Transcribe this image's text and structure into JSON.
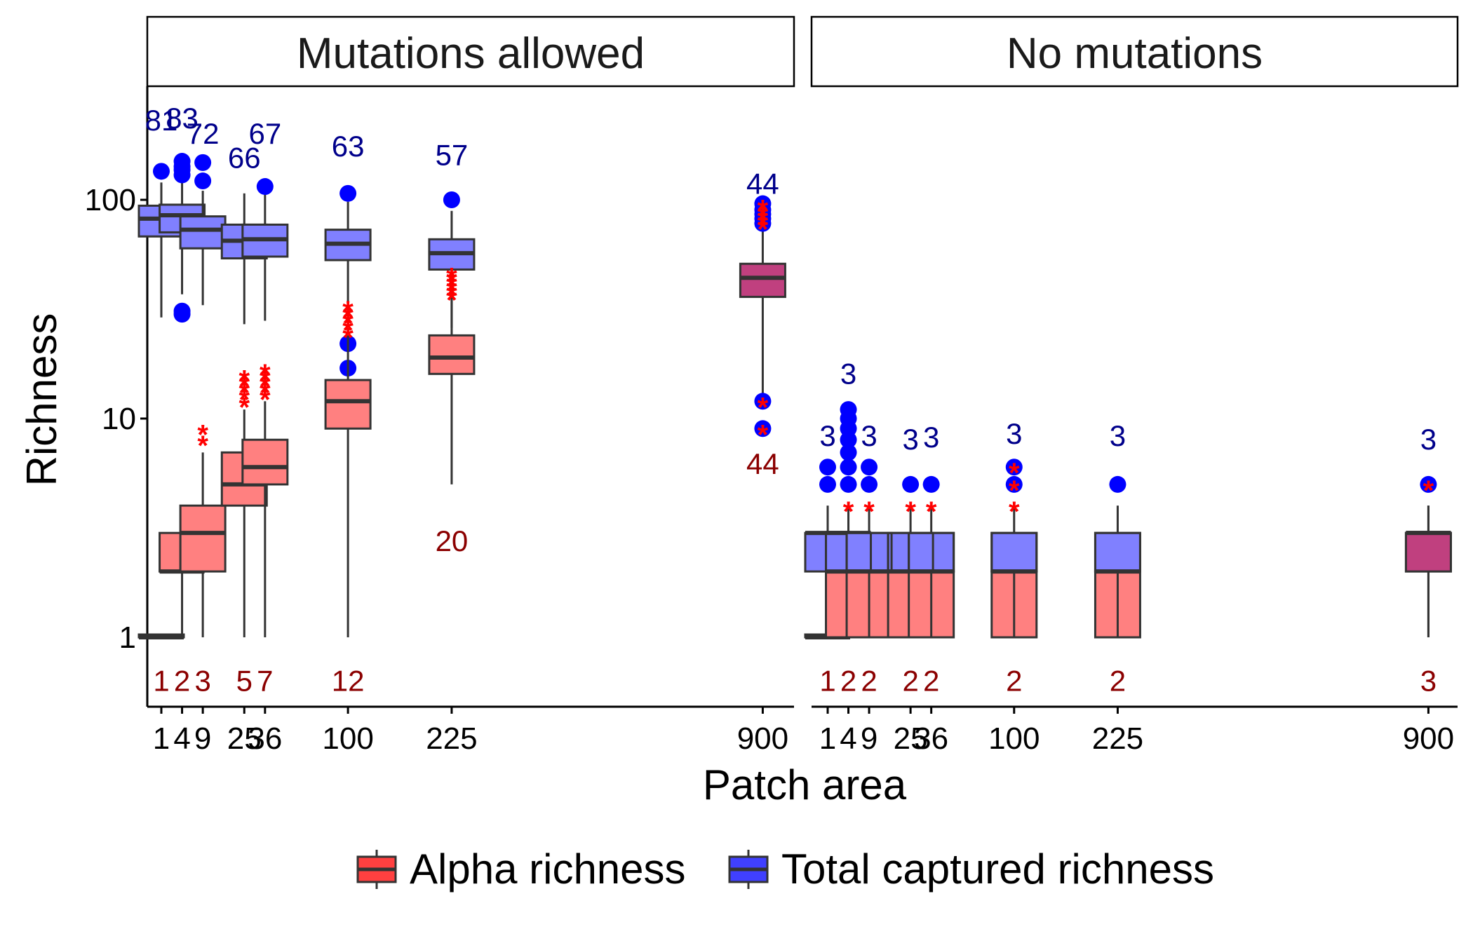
{
  "chart_data": {
    "type": "boxplot",
    "xlabel": "Patch area",
    "ylabel": "Richness",
    "y_scale": "log10",
    "ylim": [
      0.5,
      350
    ],
    "y_ticks": [
      "1",
      "10",
      "100"
    ],
    "x_categories": [
      "1",
      "4",
      "9",
      "25",
      "36",
      "100",
      "225",
      "900"
    ],
    "x_scale": "sqrt",
    "grid": false,
    "legend_position": "bottom",
    "legend": [
      {
        "label": "Alpha richness",
        "color": "#ff4040"
      },
      {
        "label": "Total captured richness",
        "color": "#4040ff"
      }
    ],
    "colors": {
      "alpha_box": "#ff8080",
      "total_box": "#8080ff",
      "overlap_box": "#c0407f",
      "alpha_outlier": "#ff0000",
      "total_outlier": "#0000ff",
      "alpha_count": "#8b0000",
      "total_count": "#00008b"
    },
    "panels": [
      {
        "title": "Mutations allowed",
        "total_richness": [
          {
            "x": "1",
            "min": 29,
            "q1": 68,
            "median": 82,
            "q3": 94,
            "max": 120,
            "outliers": [
              135
            ],
            "count_label": "81",
            "label_y": 230
          },
          {
            "x": "4",
            "min": 37,
            "q1": 71,
            "median": 85,
            "q3": 95,
            "max": 122,
            "outliers": [
              31,
              30,
              130,
              137,
              142,
              150
            ],
            "count_label": "83",
            "label_y": 235
          },
          {
            "x": "9",
            "min": 33,
            "q1": 60,
            "median": 73,
            "q3": 84,
            "max": 110,
            "outliers": [
              122,
              148
            ],
            "count_label": "72",
            "label_y": 200
          },
          {
            "x": "25",
            "min": 27,
            "q1": 54,
            "median": 65,
            "q3": 77,
            "max": 107,
            "outliers": [],
            "count_label": "66",
            "label_y": 155
          },
          {
            "x": "36",
            "min": 28,
            "q1": 55,
            "median": 66,
            "q3": 77,
            "max": 106,
            "outliers": [
              115
            ],
            "count_label": "67",
            "label_y": 200
          },
          {
            "x": "100",
            "min": 27,
            "q1": 53,
            "median": 63,
            "q3": 73,
            "max": 98,
            "outliers": [
              22,
              17,
              107
            ],
            "count_label": "63",
            "label_y": 175
          },
          {
            "x": "225",
            "min": 26,
            "q1": 48,
            "median": 57,
            "q3": 66,
            "max": 89,
            "outliers": [
              100
            ],
            "count_label": "57",
            "label_y": 160
          },
          {
            "x": "900",
            "min": 13,
            "q1": 36,
            "median": 44,
            "q3": 51,
            "max": 72,
            "outliers": [
              12,
              9,
              78,
              82,
              86,
              90,
              96
            ],
            "count_label": "44",
            "label_y": 118
          }
        ],
        "alpha_richness": [
          {
            "x": "1",
            "min": 1,
            "q1": 1,
            "median": 1,
            "q3": 1,
            "max": 1,
            "outliers": [],
            "count_label": "1",
            "label_y": 0.63
          },
          {
            "x": "4",
            "min": 1,
            "q1": 2,
            "median": 2,
            "q3": 3,
            "max": 4,
            "outliers": [],
            "count_label": "2",
            "label_y": 0.63
          },
          {
            "x": "9",
            "min": 1,
            "q1": 2,
            "median": 3,
            "q3": 4,
            "max": 7,
            "outliers": [
              8,
              9
            ],
            "count_label": "3",
            "label_y": 0.63
          },
          {
            "x": "25",
            "min": 1,
            "q1": 4,
            "median": 5,
            "q3": 7,
            "max": 11,
            "outliers": [
              12,
              13,
              14,
              15,
              16
            ],
            "count_label": "5",
            "label_y": 0.63
          },
          {
            "x": "36",
            "min": 1,
            "q1": 5,
            "median": 6,
            "q3": 8,
            "max": 12,
            "outliers": [
              13,
              14,
              15,
              16,
              17
            ],
            "count_label": "7",
            "label_y": 0.63
          },
          {
            "x": "100",
            "min": 1,
            "q1": 9,
            "median": 12,
            "q3": 15,
            "max": 24,
            "outliers": [
              25,
              27,
              29,
              31,
              33
            ],
            "count_label": "12",
            "label_y": 0.63
          },
          {
            "x": "225",
            "min": 5,
            "q1": 16,
            "median": 19,
            "q3": 24,
            "max": 36,
            "outliers": [
              37,
              39,
              41,
              43,
              45,
              47
            ],
            "count_label": "20",
            "label_y": 2.75
          },
          {
            "x": "900",
            "min": 13,
            "q1": 36,
            "median": 44,
            "q3": 51,
            "max": 72,
            "outliers": [
              12,
              9,
              78,
              82,
              86,
              90,
              96
            ],
            "count_label": "44",
            "label_y": 6.2
          }
        ]
      },
      {
        "title": "No mutations",
        "total_richness": [
          {
            "x": "1",
            "min": 1,
            "q1": 2,
            "median": 3,
            "q3": 3,
            "max": 4,
            "outliers": [
              5,
              6
            ],
            "count_label": "3",
            "label_y": 8.3
          },
          {
            "x": "4",
            "min": 1,
            "q1": 2,
            "median": 3,
            "q3": 3,
            "max": 4,
            "outliers": [
              5,
              6,
              7,
              8,
              9,
              10,
              11
            ],
            "count_label": "3",
            "label_y": 16
          },
          {
            "x": "9",
            "min": 1,
            "q1": 2,
            "median": 2,
            "q3": 3,
            "max": 4,
            "outliers": [
              5,
              6
            ],
            "count_label": "3",
            "label_y": 8.3
          },
          {
            "x": "25",
            "min": 1,
            "q1": 2,
            "median": 2,
            "q3": 3,
            "max": 4,
            "outliers": [
              5
            ],
            "count_label": "3",
            "label_y": 8
          },
          {
            "x": "36",
            "min": 1,
            "q1": 2,
            "median": 2,
            "q3": 3,
            "max": 4,
            "outliers": [
              5
            ],
            "count_label": "3",
            "label_y": 8.2
          },
          {
            "x": "100",
            "min": 1,
            "q1": 2,
            "median": 2,
            "q3": 3,
            "max": 4,
            "outliers": [
              5,
              6
            ],
            "count_label": "3",
            "label_y": 8.5
          },
          {
            "x": "225",
            "min": 1,
            "q1": 2,
            "median": 2,
            "q3": 3,
            "max": 4,
            "outliers": [
              5
            ],
            "count_label": "3",
            "label_y": 8.3
          },
          {
            "x": "900",
            "min": 1,
            "q1": 2,
            "median": 3,
            "q3": 3,
            "max": 4,
            "outliers": [
              5
            ],
            "count_label": "3",
            "label_y": 8
          }
        ],
        "alpha_richness": [
          {
            "x": "1",
            "min": 1,
            "q1": 1,
            "median": 1,
            "q3": 1,
            "max": 1,
            "outliers": [],
            "count_label": "1",
            "label_y": 0.63
          },
          {
            "x": "4",
            "min": 1,
            "q1": 1,
            "median": 2,
            "q3": 3,
            "max": 3,
            "outliers": [
              4
            ],
            "count_label": "2",
            "label_y": 0.63
          },
          {
            "x": "9",
            "min": 1,
            "q1": 1,
            "median": 2,
            "q3": 3,
            "max": 3,
            "outliers": [
              4
            ],
            "count_label": "2",
            "label_y": 0.63
          },
          {
            "x": "25",
            "min": 1,
            "q1": 1,
            "median": 2,
            "q3": 3,
            "max": 3,
            "outliers": [
              4
            ],
            "count_label": "2",
            "label_y": 0.63
          },
          {
            "x": "36",
            "min": 1,
            "q1": 1,
            "median": 2,
            "q3": 3,
            "max": 3,
            "outliers": [
              4
            ],
            "count_label": "2",
            "label_y": 0.63
          },
          {
            "x": "100",
            "min": 1,
            "q1": 1,
            "median": 2,
            "q3": 3,
            "max": 3,
            "outliers": [
              4,
              5,
              6
            ],
            "count_label": "2",
            "label_y": 0.63
          },
          {
            "x": "225",
            "min": 1,
            "q1": 1,
            "median": 2,
            "q3": 3,
            "max": 3,
            "outliers": [],
            "count_label": "2",
            "label_y": 0.63
          },
          {
            "x": "900",
            "min": 1,
            "q1": 2,
            "median": 3,
            "q3": 3,
            "max": 4,
            "outliers": [
              5
            ],
            "count_label": "3",
            "label_y": 0.63
          }
        ]
      }
    ]
  }
}
